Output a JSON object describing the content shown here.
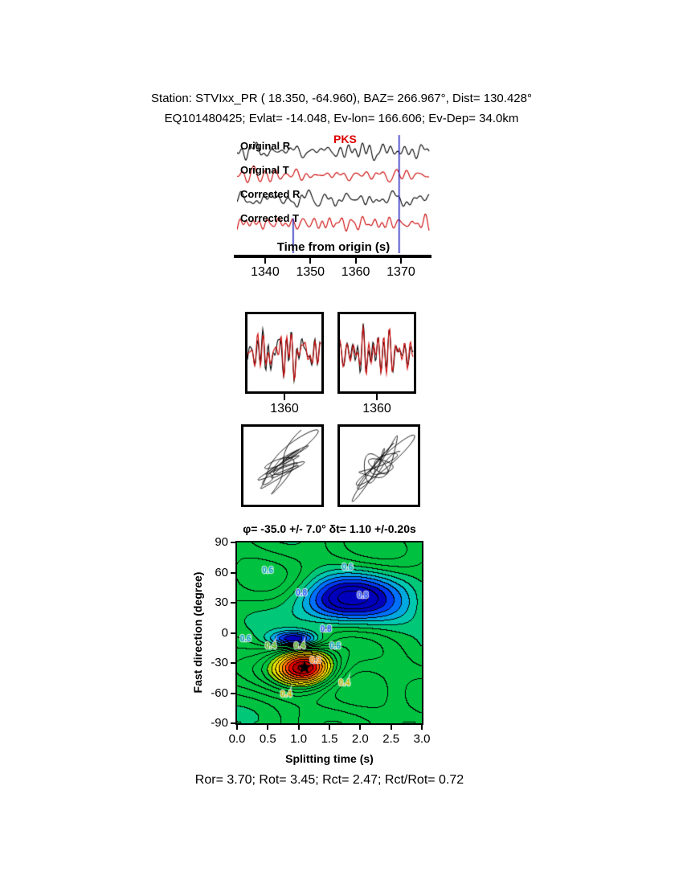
{
  "header": {
    "line1": "Station: STVIxx_PR ( 18.350, -64.960), BAZ= 266.967°, Dist= 130.428°",
    "line2": "EQ101480425; Evlat= -14.048, Ev-lon= 166.606; Ev-Dep= 34.0km"
  },
  "footer": {
    "results": "Ror= 3.70; Rot= 3.45; Rct= 2.47; Rct/Rot= 0.72"
  },
  "chart_data": [
    {
      "id": "waveforms",
      "type": "line",
      "xlabel": "Time from origin (s)",
      "xlim": [
        1333.8,
        1376.4
      ],
      "xticks": [
        "1340",
        "1350",
        "1360",
        "1370"
      ],
      "phase_label": "PKS",
      "phase_label_color": "#dd0000",
      "traces": [
        {
          "label": "Original R",
          "color": "#000000"
        },
        {
          "label": "Original T",
          "color": "#cc0000"
        },
        {
          "label": "Corrected R",
          "color": "#000000"
        },
        {
          "label": "Corrected T",
          "color": "#cc0000"
        }
      ],
      "window_markers": [
        {
          "t": 1346.2,
          "y0": 0.71,
          "y1": 1.0
        },
        {
          "t": 1369.6,
          "y0": 0.02,
          "y1": 1.0
        }
      ],
      "marker_color": "#2222bb"
    },
    {
      "id": "window-left",
      "type": "line",
      "xticks": [
        "1360"
      ],
      "series": [
        {
          "name": "original",
          "color": "#000000"
        },
        {
          "name": "corrected",
          "color": "#cc0000"
        }
      ]
    },
    {
      "id": "window-right",
      "type": "line",
      "xticks": [
        "1360"
      ],
      "series": [
        {
          "name": "original",
          "color": "#000000"
        },
        {
          "name": "corrected",
          "color": "#cc0000"
        }
      ]
    },
    {
      "id": "particle-motion-left",
      "type": "scatter",
      "description": "particle motion hodogram (uncorrected)",
      "color": "#000000"
    },
    {
      "id": "particle-motion-right",
      "type": "scatter",
      "description": "particle motion hodogram (corrected)",
      "color": "#000000"
    },
    {
      "id": "misfit-surface",
      "type": "heatmap",
      "title": "φ= -35.0 +/- 7.0° δt= 1.10 +/-0.20s",
      "xlabel": "Splitting time (s)",
      "ylabel": "Fast direction (degree)",
      "xlim": [
        0,
        3
      ],
      "ylim": [
        -90,
        90
      ],
      "xticks": [
        "0.0",
        "0.5",
        "1.0",
        "1.5",
        "2.0",
        "2.5",
        "3.0"
      ],
      "yticks": [
        "90",
        "60",
        "30",
        "0",
        "-30",
        "-60",
        "-90"
      ],
      "best_fit": {
        "phi": -35.0,
        "phi_err": 7.0,
        "dt": 1.1,
        "dt_err": 0.2,
        "marker": "black-star"
      },
      "colormap_hint": {
        "low": "#cc0000",
        "mid": "#00c240",
        "high": "#0000bc"
      },
      "contour_labels": [
        {
          "text": "0.6",
          "dt": 0.5,
          "phi": 63,
          "color": "#0098c8"
        },
        {
          "text": "0.6",
          "dt": 1.8,
          "phi": 66,
          "color": "#0098c8"
        },
        {
          "text": "0.8",
          "dt": 1.05,
          "phi": 40,
          "color": "#2850ff"
        },
        {
          "text": "0.8",
          "dt": 2.05,
          "phi": 38,
          "color": "#2850ff"
        },
        {
          "text": "0.8",
          "dt": 1.45,
          "phi": 4,
          "color": "#2850ff"
        },
        {
          "text": "0.6",
          "dt": 0.14,
          "phi": -6,
          "color": "#0098c8"
        },
        {
          "text": "0.4",
          "dt": 0.55,
          "phi": -13,
          "color": "#58b818"
        },
        {
          "text": "0.4",
          "dt": 1.02,
          "phi": -13,
          "color": "#58b818"
        },
        {
          "text": "0.6",
          "dt": 1.6,
          "phi": -13,
          "color": "#0098c8"
        },
        {
          "text": "0.3",
          "dt": 1.28,
          "phi": -27,
          "color": "#ff8800"
        },
        {
          "text": "0.4",
          "dt": 0.8,
          "phi": -61,
          "color": "#c8b400"
        },
        {
          "text": "0.4",
          "dt": 1.75,
          "phi": -50,
          "color": "#c8b400"
        }
      ]
    }
  ]
}
